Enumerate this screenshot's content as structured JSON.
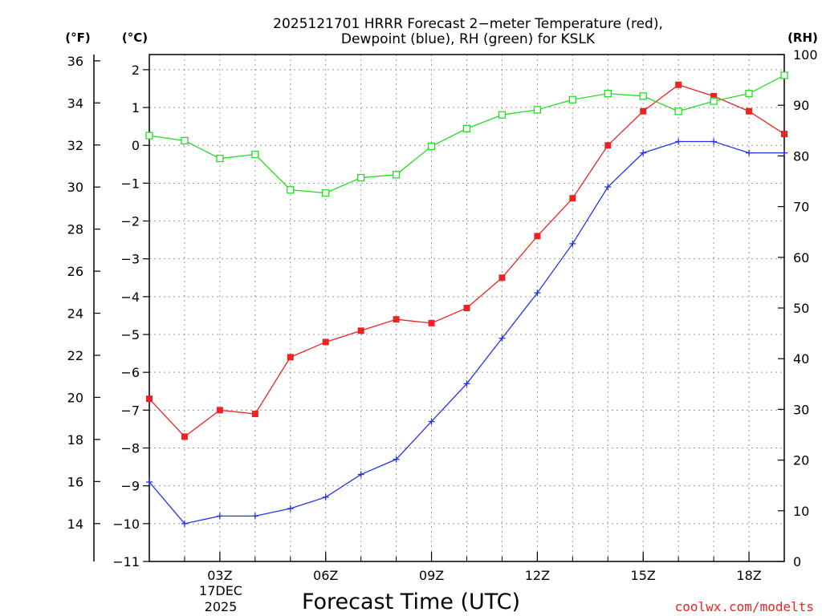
{
  "chart_data": {
    "type": "line",
    "title_line1": "2025121701 HRRR Forecast 2−meter Temperature (red),",
    "title_line2": "Dewpoint (blue), RH (green) for KSLK",
    "xlabel": "Forecast Time (UTC)",
    "unit_f": "(°F)",
    "unit_c": "(°C)",
    "unit_rh": "(RH)",
    "x_hours": [
      1,
      2,
      3,
      4,
      5,
      6,
      7,
      8,
      9,
      10,
      11,
      12,
      13,
      14,
      15,
      16,
      17,
      18,
      19
    ],
    "xlim": [
      1,
      19
    ],
    "x_ticks": [
      {
        "hour": 3,
        "label": "03Z"
      },
      {
        "hour": 6,
        "label": "06Z"
      },
      {
        "hour": 9,
        "label": "09Z"
      },
      {
        "hour": 12,
        "label": "12Z"
      },
      {
        "hour": 15,
        "label": "15Z"
      },
      {
        "hour": 18,
        "label": "18Z"
      }
    ],
    "date_label_line1": "17DEC",
    "date_label_line2": "2025",
    "ylim_c": [
      -11,
      2.4
    ],
    "yticks_c": [
      -11,
      -10,
      -9,
      -8,
      -7,
      -6,
      -5,
      -4,
      -3,
      -2,
      -1,
      0,
      1,
      2
    ],
    "ylim_f": [
      12.2,
      36.3
    ],
    "yticks_f": [
      14,
      16,
      18,
      20,
      22,
      24,
      26,
      28,
      30,
      32,
      34,
      36
    ],
    "ylim_rh": [
      0,
      100
    ],
    "yticks_rh": [
      0,
      10,
      20,
      30,
      40,
      50,
      60,
      70,
      80,
      90,
      100
    ],
    "series": [
      {
        "name": "Temperature",
        "color": "#ee2222",
        "marker": "filled-square",
        "axis": "c",
        "values": [
          -6.7,
          -7.7,
          -7.0,
          -7.1,
          -5.6,
          -5.2,
          -4.9,
          -4.6,
          -4.7,
          -4.3,
          -3.5,
          -2.4,
          -1.4,
          -0.0,
          0.9,
          1.6,
          1.3,
          0.9,
          0.3
        ]
      },
      {
        "name": "Dewpoint",
        "color": "#2233ee",
        "marker": "plus",
        "axis": "c",
        "values": [
          -8.9,
          -10.0,
          -9.8,
          -9.8,
          -9.6,
          -9.3,
          -8.7,
          -8.3,
          -7.3,
          -6.3,
          -5.1,
          -3.9,
          -2.6,
          -1.1,
          -0.2,
          0.1,
          0.1,
          -0.2,
          -0.2
        ]
      },
      {
        "name": "RH",
        "color": "#22dd22",
        "marker": "open-square",
        "axis": "rh",
        "values": [
          84,
          83,
          79.5,
          80.3,
          73.3,
          72.7,
          75.7,
          76.3,
          81.9,
          85.4,
          88.1,
          89.1,
          91.1,
          92.3,
          91.8,
          88.8,
          90.8,
          92.3,
          95.9
        ]
      }
    ],
    "grid": true
  },
  "footer": {
    "watermark": "coolwx.com/modelts",
    "watermark_color": "#ee2222"
  }
}
